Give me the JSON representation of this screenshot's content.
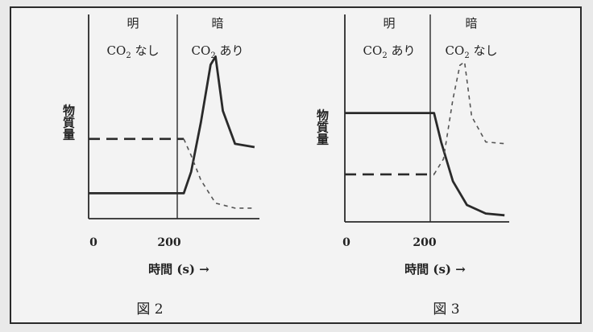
{
  "chart_data": [
    {
      "type": "line",
      "caption": "図 2",
      "phase_labels": [
        {
          "light": "明",
          "co2": "CO",
          "sub": "2",
          "cond": " なし"
        },
        {
          "light": "暗",
          "co2": "CO",
          "sub": "2",
          "cond": " あり"
        }
      ],
      "ylabel": "物質量",
      "xlabel": "時間 (s) →",
      "x_ticks": [
        "0",
        "200"
      ],
      "xlim": [
        0,
        350
      ],
      "ylim": [
        0,
        1
      ],
      "series": [
        {
          "style": "solid",
          "x": [
            0,
            195,
            210,
            230,
            250,
            260,
            275,
            300,
            340
          ],
          "y": [
            0.12,
            0.12,
            0.25,
            0.55,
            0.9,
            0.95,
            0.62,
            0.42,
            0.4
          ]
        },
        {
          "style": "dashed",
          "x": [
            0,
            195,
            210,
            230,
            260,
            300,
            340
          ],
          "y": [
            0.45,
            0.45,
            0.35,
            0.2,
            0.06,
            0.03,
            0.03
          ]
        }
      ]
    },
    {
      "type": "line",
      "caption": "図 3",
      "phase_labels": [
        {
          "light": "明",
          "co2": "CO",
          "sub": "2",
          "cond": " あり"
        },
        {
          "light": "暗",
          "co2": "CO",
          "sub": "2",
          "cond": " なし"
        }
      ],
      "ylabel": "物質量",
      "xlabel": "時間 (s) →",
      "x_ticks": [
        "0",
        "200"
      ],
      "xlim": [
        0,
        350
      ],
      "ylim": [
        0,
        1
      ],
      "series": [
        {
          "style": "solid",
          "x": [
            0,
            190,
            205,
            230,
            260,
            300,
            340
          ],
          "y": [
            0.62,
            0.62,
            0.45,
            0.22,
            0.08,
            0.03,
            0.02
          ]
        },
        {
          "style": "dashed",
          "x": [
            0,
            190,
            210,
            230,
            245,
            255,
            270,
            300,
            340
          ],
          "y": [
            0.26,
            0.26,
            0.35,
            0.7,
            0.9,
            0.92,
            0.6,
            0.45,
            0.44
          ]
        }
      ]
    }
  ]
}
